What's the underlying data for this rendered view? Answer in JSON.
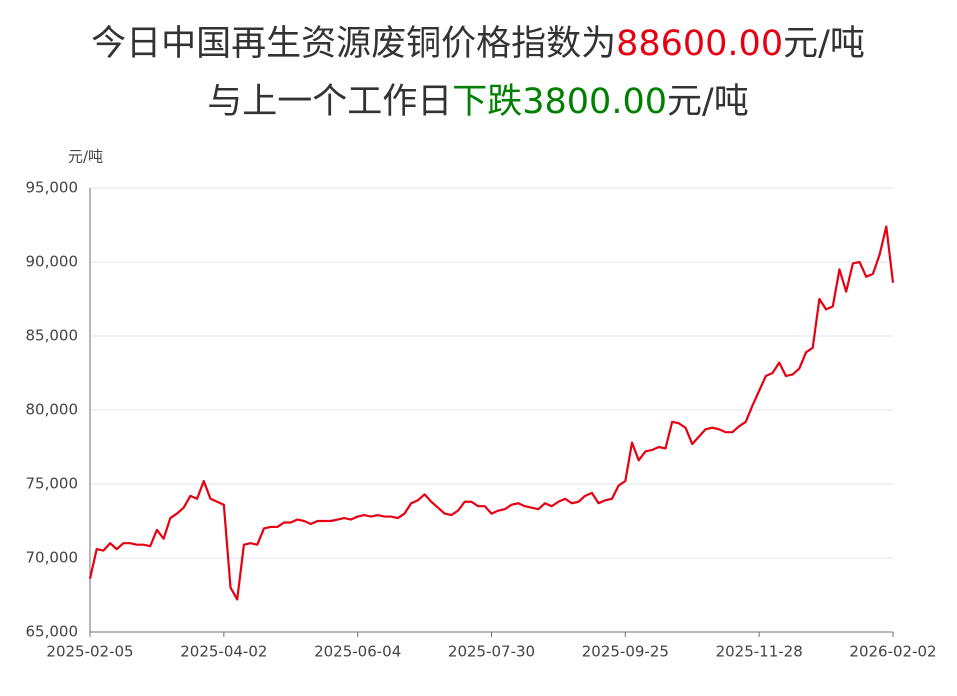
{
  "chart_data": {
    "type": "line",
    "title_lines": [
      [
        {
          "text": "今日中国再生资源废铜价格指数为",
          "color": "#333333"
        },
        {
          "text": "88600.00",
          "color": "#e60012"
        },
        {
          "text": "元/吨",
          "color": "#333333"
        }
      ],
      [
        {
          "text": "与上一个工作日",
          "color": "#333333"
        },
        {
          "text": "下跌",
          "color": "#008000"
        },
        {
          "text": "3800.00",
          "color": "#008000"
        },
        {
          "text": "元/吨",
          "color": "#333333"
        }
      ]
    ],
    "y_label": "元/吨",
    "categories": [
      "2025-02-05",
      null,
      null,
      null,
      null,
      null,
      null,
      null,
      null,
      null,
      null,
      null,
      null,
      null,
      null,
      null,
      null,
      null,
      null,
      null,
      "2025-04-02",
      null,
      null,
      null,
      null,
      null,
      null,
      null,
      null,
      null,
      null,
      null,
      null,
      null,
      null,
      null,
      null,
      null,
      null,
      null,
      "2025-06-04",
      null,
      null,
      null,
      null,
      null,
      null,
      null,
      null,
      null,
      null,
      null,
      null,
      null,
      null,
      null,
      null,
      null,
      null,
      null,
      "2025-07-30",
      null,
      null,
      null,
      null,
      null,
      null,
      null,
      null,
      null,
      null,
      null,
      null,
      null,
      null,
      null,
      null,
      null,
      null,
      null,
      "2025-09-25",
      null,
      null,
      null,
      null,
      null,
      null,
      null,
      null,
      null,
      null,
      null,
      null,
      null,
      null,
      null,
      null,
      null,
      null,
      null,
      "2025-11-28",
      null,
      null,
      null,
      null,
      null,
      null,
      null,
      null,
      null,
      null,
      null,
      null,
      null,
      null,
      null,
      null,
      null,
      null,
      null,
      "2026-02-02"
    ],
    "series": [
      {
        "color": "#e60012",
        "values": [
          68600,
          70600,
          70500,
          71000,
          70600,
          71000,
          71000,
          70900,
          70900,
          70800,
          71900,
          71300,
          72700,
          73000,
          73400,
          74200,
          74000,
          75200,
          74000,
          73800,
          73600,
          68000,
          67200,
          70900,
          71000,
          70900,
          72000,
          72100,
          72100,
          72400,
          72400,
          72600,
          72500,
          72300,
          72500,
          72500,
          72500,
          72600,
          72700,
          72600,
          72800,
          72900,
          72800,
          72900,
          72800,
          72800,
          72700,
          73000,
          73700,
          73900,
          74300,
          73800,
          73400,
          73000,
          72900,
          73200,
          73800,
          73800,
          73500,
          73500,
          73000,
          73200,
          73300,
          73600,
          73700,
          73500,
          73400,
          73300,
          73700,
          73500,
          73800,
          74000,
          73700,
          73800,
          74200,
          74400,
          73700,
          73900,
          74000,
          74900,
          75200,
          77800,
          76600,
          77200,
          77300,
          77500,
          77400,
          79200,
          79100,
          78800,
          77700,
          78200,
          78700,
          78800,
          78700,
          78500,
          78500,
          78900,
          79200,
          80300,
          81300,
          82300,
          82500,
          83200,
          82300,
          82400,
          82800,
          83900,
          84200,
          87500,
          86800,
          87000,
          89500,
          88000,
          89900,
          90000,
          89000,
          89200,
          90500,
          92400,
          88600
        ]
      }
    ],
    "ylim": [
      65000,
      95000
    ],
    "yticks": [
      {
        "value": 65000,
        "label": "65,000"
      },
      {
        "value": 70000,
        "label": "70,000"
      },
      {
        "value": 75000,
        "label": "75,000"
      },
      {
        "value": 80000,
        "label": "80,000"
      },
      {
        "value": 85000,
        "label": "85,000"
      },
      {
        "value": 90000,
        "label": "90,000"
      },
      {
        "value": 95000,
        "label": "95,000"
      }
    ],
    "grid": true
  }
}
